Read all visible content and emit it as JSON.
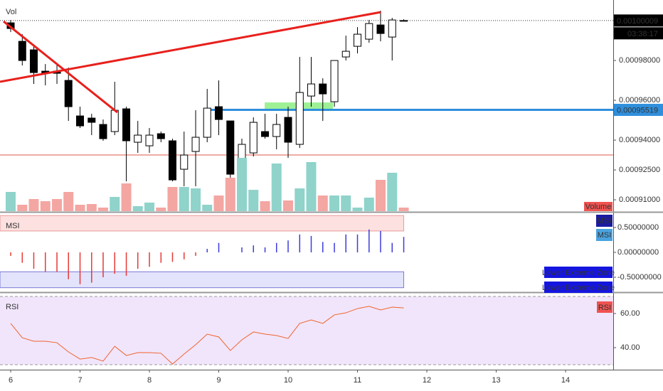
{
  "chart_data": [
    {
      "type": "candlestick",
      "label": "Vol",
      "x": [
        6,
        6.167,
        6.333,
        6.5,
        6.667,
        6.833,
        7,
        7.167,
        7.333,
        7.5,
        7.667,
        7.833,
        8,
        8.167,
        8.333,
        8.5,
        8.667,
        8.833,
        9,
        9.167,
        9.333,
        9.5,
        9.667,
        9.833,
        10,
        10.167,
        10.333,
        10.5,
        10.667,
        10.833,
        11,
        11.167,
        11.333,
        11.5,
        11.667
      ],
      "open": [
        0.00099893,
        0.00098964,
        0.00098536,
        0.00097464,
        0.00097464,
        0.00097,
        0.00095215,
        0.00095107,
        0.00094786,
        0.00094429,
        0.00095572,
        0.00093893,
        0.00093714,
        0.00094322,
        0.00093965,
        0.00092536,
        0.00093429,
        0.00094143,
        0.00095679,
        0.00094964,
        0.00092286,
        0.00093357,
        0.00094429,
        0.00094179,
        0.00095143,
        0.00093786,
        0.00096214,
        0.00096822,
        0.00095929,
        0.00098179,
        0.00098714,
        0.00099072,
        0.00099786,
        0.00099179,
        0.001
      ],
      "high": [
        0.00100036,
        0.00099322,
        0.00098714,
        0.00097822,
        0.00097822,
        0.00097643,
        0.00095679,
        0.00095322,
        0.00095036,
        0.00096929,
        0.00095679,
        0.00094964,
        0.00094607,
        0.00094429,
        0.00094072,
        0.00094429,
        0.000955,
        0.00096572,
        0.00097,
        0.00094964,
        0.00094072,
        0.00095143,
        0.00095322,
        0.00095322,
        0.00095679,
        0.00098179,
        0.00098179,
        0.00097107,
        0.00098,
        0.0009925,
        0.00099679,
        0.00100036,
        0.001005,
        0.00100143,
        0.00100072
      ],
      "low": [
        0.00099429,
        0.0009775,
        0.00096822,
        0.0009675,
        0.00096822,
        0.00094964,
        0.00094607,
        0.0009425,
        0.00093965,
        0.0009425,
        0.00091929,
        0.00093357,
        0.00093357,
        0.00093893,
        0.00091929,
        0.00091679,
        0.00091679,
        0.00093893,
        0.0009425,
        0.00092107,
        0.00092036,
        0.00093179,
        0.00094072,
        0.00093536,
        0.00093107,
        0.00093607,
        0.00095679,
        0.00094964,
        0.00095679,
        0.00098,
        0.00098357,
        0.00098893,
        0.00098964,
        0.00098,
        0.00099964
      ],
      "close": [
        0.00099607,
        0.00098,
        0.00097393,
        0.00097357,
        0.00097357,
        0.00095679,
        0.00094714,
        0.00094893,
        0.00094072,
        0.000955,
        0.00093965,
        0.0009425,
        0.0009425,
        0.00094072,
        0.00092,
        0.0009325,
        0.00094143,
        0.00095607,
        0.00095036,
        0.00092286,
        0.00093786,
        0.00094893,
        0.00094179,
        0.00094786,
        0.00093893,
        0.00096393,
        0.00096822,
        0.00096322,
        0.00098,
        0.00098464,
        0.00099322,
        0.00099857,
        0.00099357,
        0.00100036,
        0.00100009
      ],
      "up_color": "#ffffff",
      "down_color": "#000000",
      "xlim": [
        5.846,
        14.687
      ],
      "xticks": [
        6,
        7,
        8,
        9,
        10,
        11,
        12,
        13,
        14
      ],
      "ylim": [
        0.0009043,
        0.0010104
      ],
      "yticks": [
        {
          "value": 0.00098,
          "label": "0.00098000"
        },
        {
          "value": 0.00096,
          "label": "0.00096000"
        },
        {
          "value": 0.00094,
          "label": "0.00094000"
        },
        {
          "value": 0.000925,
          "label": "0.00092500"
        },
        {
          "value": 0.00091,
          "label": "0.00091000"
        }
      ],
      "current_price": {
        "value": 0.00100009,
        "label": "0.00100009"
      },
      "countdown": "03:38:17",
      "price_line": {
        "value": 0.00095519,
        "label": "0.00095519",
        "color": "#2f8fdc"
      },
      "red_level": 0.0009325,
      "trend_lines": [
        {
          "x": [
            5.846,
            11.333
          ],
          "y": [
            0.00096929,
            0.00100429
          ],
          "color": "#e8201c"
        },
        {
          "x": [
            5.897,
            7.538
          ],
          "y": [
            0.00099965,
            0.00095393
          ],
          "color": "#e8201c"
        }
      ],
      "box": {
        "x": [
          9.662,
          10.646
        ],
        "y": [
          0.00095893,
          0.00095465
        ],
        "color": "#86ec7a"
      }
    },
    {
      "type": "bar",
      "label": "Volume",
      "values": [
        27,
        9,
        17,
        14,
        17,
        27,
        9,
        10,
        5,
        20,
        39,
        7,
        12,
        5,
        34,
        34,
        32,
        9,
        22,
        47,
        75,
        30,
        14,
        67,
        15,
        32,
        69,
        22,
        22,
        22,
        5,
        19,
        44,
        54,
        5
      ],
      "colors": [
        "#8fd3ca",
        "#f4a6a2",
        "#f4a6a2",
        "#f4a6a2",
        "#f4a6a2",
        "#f4a6a2",
        "#f4a6a2",
        "#f4a6a2",
        "#f4a6a2",
        "#8fd3ca",
        "#f4a6a2",
        "#8fd3ca",
        "#8fd3ca",
        "#f4a6a2",
        "#f4a6a2",
        "#8fd3ca",
        "#8fd3ca",
        "#8fd3ca",
        "#f4a6a2",
        "#f4a6a2",
        "#8fd3ca",
        "#8fd3ca",
        "#f4a6a2",
        "#8fd3ca",
        "#f4a6a2",
        "#8fd3ca",
        "#8fd3ca",
        "#f4a6a2",
        "#8fd3ca",
        "#8fd3ca",
        "#8fd3ca",
        "#8fd3ca",
        "#f4a6a2",
        "#8fd3ca",
        "#f4a6a2"
      ],
      "ylim": [
        0,
        297
      ]
    },
    {
      "type": "histogram",
      "label": "MSI",
      "legend": [
        "MSI",
        "MSI"
      ],
      "values": [
        -0.07,
        -0.21,
        -0.33,
        -0.39,
        -0.39,
        -0.54,
        -0.64,
        -0.61,
        -0.5,
        -0.43,
        -0.47,
        -0.33,
        -0.29,
        -0.21,
        -0.19,
        -0.14,
        -0.07,
        0.07,
        0.19,
        0,
        0.1,
        0.14,
        0.1,
        0.19,
        0.24,
        0.36,
        0.33,
        0.21,
        0.19,
        0.36,
        0.36,
        0.46,
        0.43,
        0.19,
        0.31
      ],
      "up_color": "#3b3bdc",
      "down_color": "#e53935",
      "ylim": [
        -0.786,
        0.786
      ],
      "yticks": [
        {
          "value": 0.5,
          "label": "0.50000000"
        },
        {
          "value": 0,
          "label": "0.00000000"
        },
        {
          "value": -0.5,
          "label": "-0.50000000"
        }
      ],
      "upper_zone": [
        0.43,
        0.74
      ],
      "lower_zone": [
        -0.71,
        -0.39
      ],
      "zone_labels": [
        "Lower Extreme Zone",
        "Lower Extreme Zone"
      ]
    },
    {
      "type": "line",
      "label": "RSI",
      "values": [
        54.2,
        45.8,
        43.75,
        43.75,
        42.9,
        37.5,
        33.3,
        34.2,
        32.1,
        40.8,
        35.4,
        37.1,
        37.1,
        36.7,
        30.4,
        36.25,
        41.7,
        47.9,
        46.25,
        38.3,
        44.6,
        49.2,
        47.9,
        47.1,
        45.4,
        54.2,
        56.25,
        54.2,
        59.2,
        60.4,
        62.9,
        64.2,
        62.1,
        63.75,
        63.3
      ],
      "color": "#f0642d",
      "ylim": [
        27.92,
        71.67
      ],
      "yticks": [
        {
          "value": 60,
          "label": "60.00"
        },
        {
          "value": 40,
          "label": "40.00"
        }
      ],
      "bands": [
        30,
        70
      ]
    }
  ]
}
